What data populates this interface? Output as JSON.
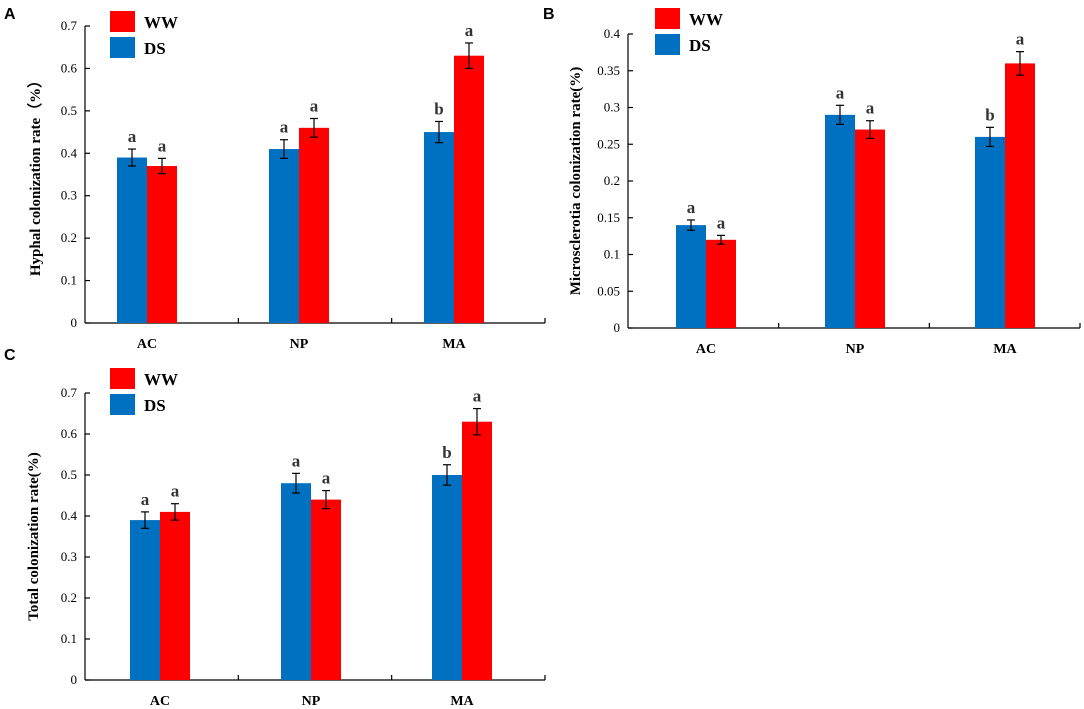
{
  "colors": {
    "DS": "#0070c0",
    "WW": "#ff0000",
    "axis": "#000000",
    "significance": "#333333"
  },
  "chart_data": [
    {
      "panel": "A",
      "type": "bar",
      "categories": [
        "AC",
        "NP",
        "MA"
      ],
      "series": [
        {
          "name": "DS",
          "values": [
            0.39,
            0.41,
            0.45
          ],
          "errors": [
            0.02,
            0.022,
            0.025
          ],
          "letters": [
            "a",
            "a",
            "b"
          ]
        },
        {
          "name": "WW",
          "values": [
            0.37,
            0.46,
            0.63
          ],
          "errors": [
            0.018,
            0.022,
            0.03
          ],
          "letters": [
            "a",
            "a",
            "a"
          ]
        }
      ],
      "legend": [
        "WW",
        "DS"
      ],
      "ylabel": "Hyphal colonization rate（%）",
      "ylim": [
        0,
        0.7
      ],
      "yticks": [
        "0",
        "0.1",
        "0.2",
        "0.3",
        "0.4",
        "0.5",
        "0.6",
        "0.7"
      ]
    },
    {
      "panel": "B",
      "type": "bar",
      "categories": [
        "AC",
        "NP",
        "MA"
      ],
      "series": [
        {
          "name": "DS",
          "values": [
            0.14,
            0.29,
            0.26
          ],
          "errors": [
            0.007,
            0.013,
            0.013
          ],
          "letters": [
            "a",
            "a",
            "b"
          ]
        },
        {
          "name": "WW",
          "values": [
            0.12,
            0.27,
            0.36
          ],
          "errors": [
            0.006,
            0.012,
            0.016
          ],
          "letters": [
            "a",
            "a",
            "a"
          ]
        }
      ],
      "legend": [
        "WW",
        "DS"
      ],
      "ylabel": "Microsclerotia colonization rate(%)",
      "ylim": [
        0,
        0.4
      ],
      "yticks": [
        "0",
        "0.05",
        "0.1",
        "0.15",
        "0.2",
        "0.25",
        "0.3",
        "0.35",
        "0.4"
      ]
    },
    {
      "panel": "C",
      "type": "bar",
      "categories": [
        "AC",
        "NP",
        "MA"
      ],
      "series": [
        {
          "name": "DS",
          "values": [
            0.39,
            0.48,
            0.5
          ],
          "errors": [
            0.02,
            0.024,
            0.025
          ],
          "letters": [
            "a",
            "a",
            "b"
          ]
        },
        {
          "name": "WW",
          "values": [
            0.41,
            0.44,
            0.63
          ],
          "errors": [
            0.02,
            0.022,
            0.032
          ],
          "letters": [
            "a",
            "a",
            "a"
          ]
        }
      ],
      "legend": [
        "WW",
        "DS"
      ],
      "ylabel": "Total colonization rate(%)",
      "ylim": [
        0,
        0.7
      ],
      "yticks": [
        "0",
        "0.1",
        "0.2",
        "0.3",
        "0.4",
        "0.5",
        "0.6",
        "0.7"
      ]
    }
  ]
}
